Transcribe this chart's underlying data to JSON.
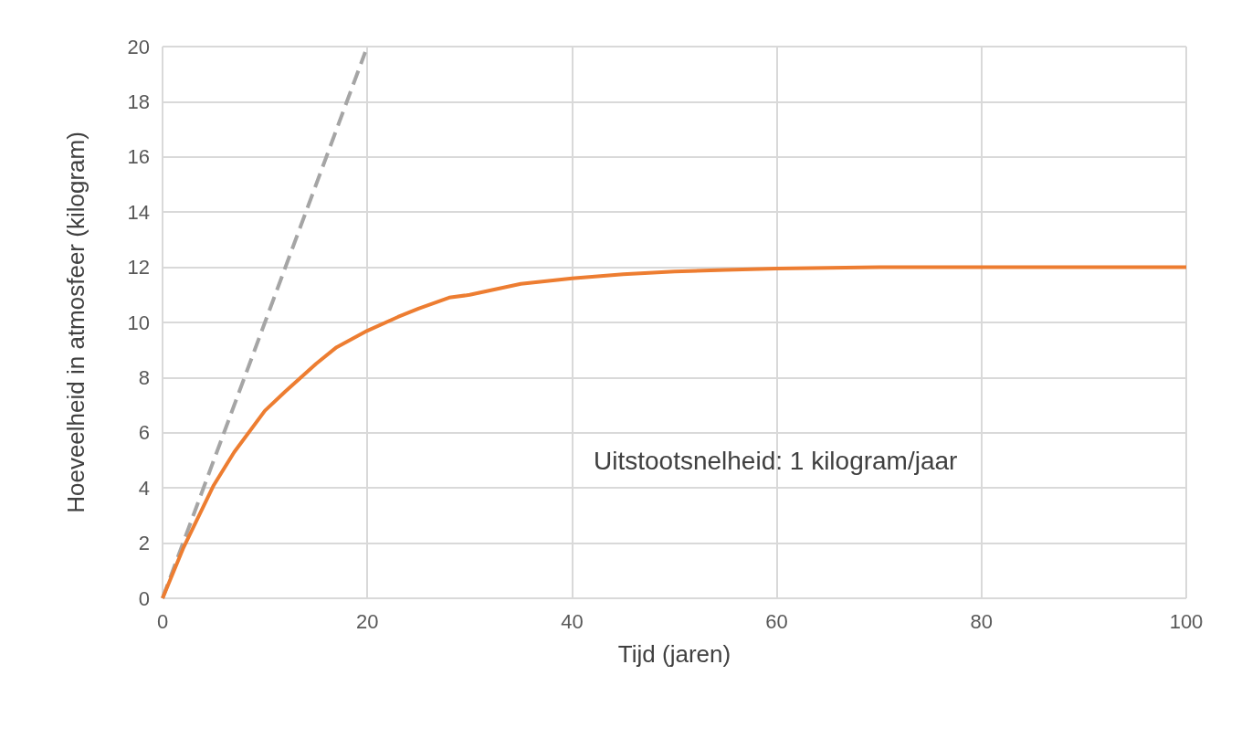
{
  "chart_data": {
    "type": "line",
    "xlabel": "Tijd (jaren)",
    "ylabel": "Hoeveelheid in atmosfeer (kilogram)",
    "xlim": [
      0,
      100
    ],
    "xticks": [
      0,
      20,
      40,
      60,
      80,
      100
    ],
    "ylim": [
      0,
      20
    ],
    "yticks": [
      0,
      2,
      4,
      6,
      8,
      10,
      12,
      14,
      16,
      18,
      20
    ],
    "grid": true,
    "marker": "none",
    "annotations": [
      "Uitstootsnelheid: 1 kilogram/jaar"
    ],
    "series": [
      {
        "color": "#a5a5a5",
        "line_style": "dashed",
        "x": [
          0,
          19.8
        ],
        "values": [
          0,
          19.8
        ]
      },
      {
        "color": "#ed7d31",
        "line_style": "solid",
        "x": [
          0,
          2,
          5,
          7,
          10,
          12,
          15,
          17,
          20,
          23,
          25,
          28,
          30,
          35,
          40,
          45,
          50,
          55,
          60,
          70,
          80,
          100
        ],
        "values": [
          0,
          1.8,
          4.1,
          5.3,
          6.8,
          7.5,
          8.5,
          9.1,
          9.7,
          10.2,
          10.5,
          10.9,
          11.0,
          11.4,
          11.6,
          11.75,
          11.85,
          11.9,
          11.95,
          12,
          12,
          12
        ]
      }
    ]
  }
}
